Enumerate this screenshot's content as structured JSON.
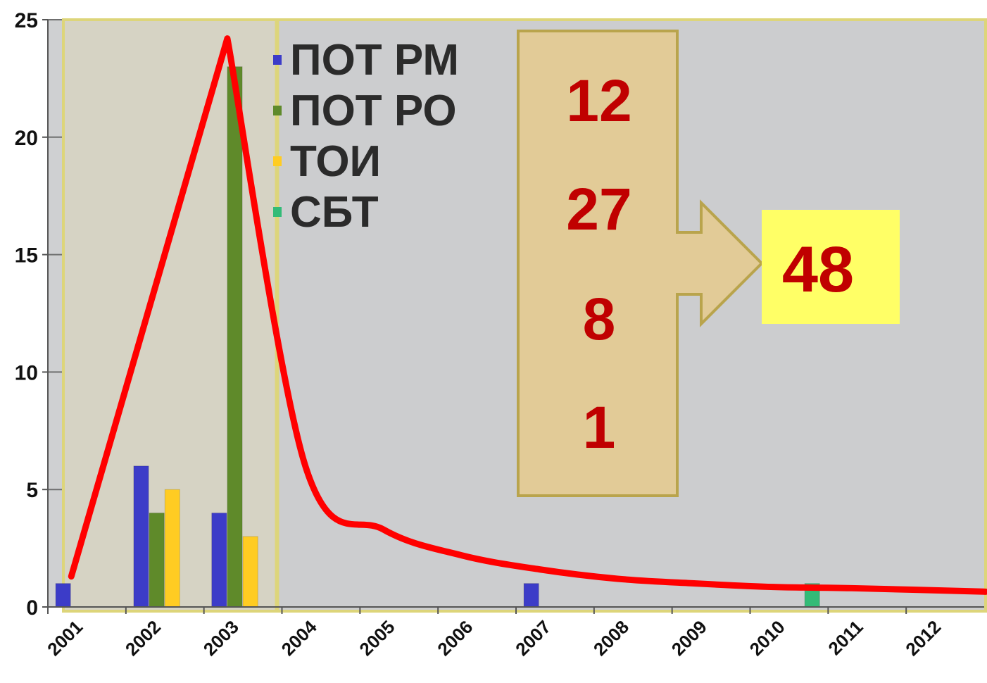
{
  "chart_data": {
    "type": "bar",
    "title": "",
    "xlabel": "",
    "ylabel": "",
    "categories": [
      "2001",
      "2002",
      "2003",
      "2004",
      "2005",
      "2006",
      "2007",
      "2008",
      "2009",
      "2010",
      "2011",
      "2012"
    ],
    "ylim": [
      0,
      25
    ],
    "yticks": [
      "0",
      "5",
      "10",
      "15",
      "20",
      "25"
    ],
    "grid": "horizontal",
    "legend_position": "top-left",
    "series": [
      {
        "name": "ПОТ РМ",
        "color": "#3c3cc8",
        "values": [
          1,
          6,
          4,
          0,
          0,
          0,
          1,
          0,
          0,
          0,
          0,
          0
        ]
      },
      {
        "name": "ПОТ РО",
        "color": "#5f8a2a",
        "values": [
          0,
          4,
          23,
          0,
          0,
          0,
          0,
          0,
          0,
          0,
          0,
          0
        ]
      },
      {
        "name": "ТОИ",
        "color": "#ffcc22",
        "values": [
          0,
          5,
          3,
          0,
          0,
          0,
          0,
          0,
          0,
          0,
          0,
          0
        ]
      },
      {
        "name": "СБТ",
        "color": "#33bb77",
        "values": [
          0,
          0,
          0,
          0,
          0,
          0,
          0,
          0,
          0,
          1,
          0,
          0
        ]
      }
    ],
    "trend_line": {
      "color": "#ff0000",
      "x": [
        2001,
        2003,
        2004,
        2005,
        2006,
        2007,
        2008,
        2009,
        2010,
        2011,
        2012
      ],
      "y": [
        1.3,
        24.2,
        6.0,
        3.3,
        2.2,
        1.6,
        1.2,
        1.0,
        0.85,
        0.8,
        0.65
      ]
    },
    "highlight_regions": [
      {
        "from": "2001",
        "to": "2003"
      },
      {
        "from": "2004",
        "to": "2012"
      }
    ],
    "summary_box": {
      "values": [
        "12",
        "27",
        "8",
        "1"
      ],
      "total": "48"
    }
  }
}
